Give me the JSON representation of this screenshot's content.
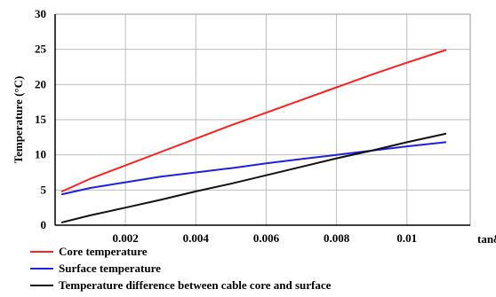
{
  "chart_data": {
    "type": "line",
    "title": "",
    "xlabel": "tanδ",
    "ylabel": "Temperature (°C)",
    "xlim": [
      0,
      0.0118
    ],
    "ylim": [
      0,
      30
    ],
    "x_ticks": [
      0.002,
      0.004,
      0.006,
      0.008,
      0.01
    ],
    "x_tick_labels": [
      "0.002",
      "0.004",
      "0.006",
      "0.008",
      "0.01"
    ],
    "y_ticks": [
      0,
      5,
      10,
      15,
      20,
      25,
      30
    ],
    "y_tick_labels": [
      "0",
      "5",
      "10",
      "15",
      "20",
      "25",
      "30"
    ],
    "grid": true,
    "legend_position": "bottom",
    "series": [
      {
        "name": "Core temperature",
        "color": "#ff2020",
        "x": [
          0.0002,
          0.001,
          0.002,
          0.003,
          0.004,
          0.005,
          0.006,
          0.007,
          0.008,
          0.009,
          0.01,
          0.0111
        ],
        "y": [
          4.8,
          6.6,
          8.5,
          10.4,
          12.3,
          14.2,
          16.0,
          17.8,
          19.6,
          21.4,
          23.1,
          24.9
        ]
      },
      {
        "name": "Surface temperature",
        "color": "#2020e0",
        "x": [
          0.0002,
          0.001,
          0.002,
          0.003,
          0.004,
          0.005,
          0.006,
          0.007,
          0.008,
          0.009,
          0.01,
          0.0111
        ],
        "y": [
          4.4,
          5.3,
          6.1,
          6.9,
          7.5,
          8.1,
          8.8,
          9.4,
          10.0,
          10.6,
          11.2,
          11.8
        ]
      },
      {
        "name": "Temperature difference between cable core and surface",
        "color": "#111111",
        "x": [
          0.0002,
          0.001,
          0.002,
          0.003,
          0.004,
          0.005,
          0.006,
          0.007,
          0.008,
          0.009,
          0.01,
          0.0111
        ],
        "y": [
          0.4,
          1.4,
          2.5,
          3.6,
          4.8,
          5.9,
          7.1,
          8.3,
          9.5,
          10.6,
          11.8,
          13.0
        ]
      }
    ]
  }
}
